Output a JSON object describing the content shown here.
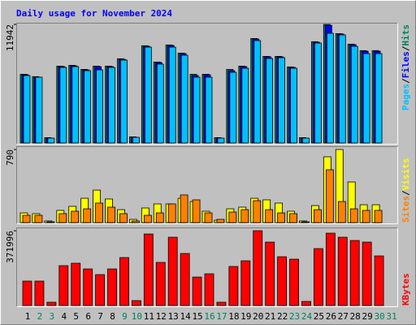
{
  "chart_data": [
    {
      "type": "bar",
      "title": "Daily usage for November 2024",
      "ylim": [
        0,
        11942
      ],
      "yticks": [
        11942
      ],
      "series": [
        {
          "name": "Hits",
          "color": "#00805c",
          "values": [
            6920,
            6680,
            540,
            7740,
            7820,
            7410,
            7740,
            7740,
            8480,
            620,
            9790,
            8150,
            9870,
            9050,
            6920,
            6920,
            540,
            7410,
            7740,
            10520,
            8720,
            8720,
            7660,
            540,
            10200,
            11942,
            11010,
            9950,
            9300,
            9300,
            null
          ]
        },
        {
          "name": "Files",
          "color": "#0000ff",
          "values": [
            6871,
            6626,
            491,
            7689,
            7771,
            7362,
            7689,
            7689,
            8425,
            573,
            9734,
            8098,
            9816,
            8998,
            6789,
            6871,
            491,
            7280,
            7689,
            10470,
            8671,
            8671,
            7607,
            491,
            10143,
            11850,
            10961,
            9898,
            9243,
            9243,
            null
          ]
        },
        {
          "name": "Pages",
          "color": "#00c0ff",
          "values": [
            6789,
            6626,
            491,
            7607,
            7689,
            7280,
            7362,
            7607,
            8344,
            573,
            9652,
            7935,
            9652,
            8834,
            6626,
            6626,
            491,
            7117,
            7526,
            10307,
            8507,
            8589,
            7526,
            491,
            10061,
            11043,
            10879,
            9734,
            8998,
            8998,
            null
          ]
        }
      ]
    },
    {
      "type": "bar",
      "ylim": [
        0,
        790
      ],
      "yticks": [
        790
      ],
      "separator": "/",
      "series": [
        {
          "name": "Visits",
          "color": "#ffff00",
          "values": [
            105,
            97,
            18,
            132,
            176,
            263,
            351,
            255,
            140,
            35,
            158,
            202,
            202,
            263,
            228,
            123,
            26,
            149,
            167,
            263,
            246,
            211,
            123,
            18,
            184,
            711,
            790,
            439,
            193,
            193,
            null
          ]
        },
        {
          "name": "Sites",
          "color": "#ff8000",
          "values": [
            79,
            79,
            9,
            97,
            123,
            149,
            211,
            167,
            97,
            18,
            79,
            105,
            202,
            299,
            246,
            105,
            35,
            114,
            140,
            237,
            140,
            105,
            97,
            9,
            140,
            571,
            228,
            149,
            132,
            132,
            null
          ]
        }
      ]
    },
    {
      "type": "bar",
      "ylim": [
        0,
        371996
      ],
      "yticks": [
        371996
      ],
      "categories": [
        "1",
        "2",
        "3",
        "4",
        "5",
        "6",
        "7",
        "8",
        "9",
        "10",
        "11",
        "12",
        "13",
        "14",
        "15",
        "16",
        "17",
        "18",
        "19",
        "20",
        "21",
        "22",
        "23",
        "24",
        "25",
        "26",
        "27",
        "28",
        "29",
        "30",
        "31"
      ],
      "category_colors": [
        "#000000",
        "#00805c",
        "#00805c",
        "#000000",
        "#000000",
        "#000000",
        "#000000",
        "#000000",
        "#00805c",
        "#00805c",
        "#000000",
        "#000000",
        "#000000",
        "#000000",
        "#000000",
        "#00805c",
        "#00805c",
        "#000000",
        "#000000",
        "#000000",
        "#000000",
        "#000000",
        "#00805c",
        "#00805c",
        "#000000",
        "#000000",
        "#000000",
        "#000000",
        "#000000",
        "#00805c",
        "#00805c"
      ],
      "series": [
        {
          "name": "KBytes",
          "color": "#ff0000",
          "values": [
            121290,
            121290,
            16172,
            198107,
            210236,
            181935,
            153634,
            181935,
            238537,
            24258,
            355784,
            214279,
            339612,
            258752,
            141505,
            157677,
            16172,
            194064,
            222365,
            371996,
            315354,
            242580,
            230451,
            20215,
            283010,
            359827,
            339612,
            323440,
            315354,
            246623,
            null
          ]
        }
      ]
    }
  ]
}
